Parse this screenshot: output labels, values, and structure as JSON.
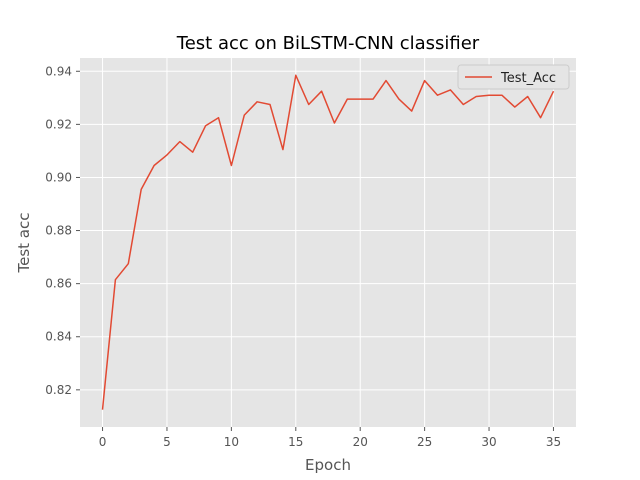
{
  "chart_data": {
    "type": "line",
    "title": "Test acc on BiLSTM-CNN classifier",
    "xlabel": "Epoch",
    "ylabel": "Test acc",
    "xlim": [
      -1.75,
      36.75
    ],
    "ylim": [
      0.806,
      0.945
    ],
    "xticks": [
      0,
      5,
      10,
      15,
      20,
      25,
      30,
      35
    ],
    "yticks": [
      0.82,
      0.84,
      0.86,
      0.88,
      0.9,
      0.92,
      0.94
    ],
    "xtick_labels": [
      "0",
      "5",
      "10",
      "15",
      "20",
      "25",
      "30",
      "35"
    ],
    "ytick_labels": [
      "0.82",
      "0.84",
      "0.86",
      "0.88",
      "0.90",
      "0.92",
      "0.94"
    ],
    "grid": true,
    "legend_position": "top-right",
    "series": [
      {
        "name": "Test_Acc",
        "color": "#e24a33",
        "x": [
          0,
          1,
          2,
          3,
          4,
          5,
          6,
          7,
          8,
          9,
          10,
          11,
          12,
          13,
          14,
          15,
          16,
          17,
          18,
          19,
          20,
          21,
          22,
          23,
          24,
          25,
          26,
          27,
          28,
          29,
          30,
          31,
          32,
          33,
          34,
          35
        ],
        "y": [
          0.8125,
          0.8615,
          0.8675,
          0.8955,
          0.9045,
          0.9085,
          0.9135,
          0.9095,
          0.9195,
          0.9225,
          0.9045,
          0.9235,
          0.9285,
          0.9275,
          0.9105,
          0.9385,
          0.9275,
          0.9325,
          0.9205,
          0.9295,
          0.9295,
          0.9295,
          0.9365,
          0.9295,
          0.925,
          0.9365,
          0.931,
          0.933,
          0.9275,
          0.9305,
          0.931,
          0.931,
          0.9265,
          0.9305,
          0.9225,
          0.9325
        ]
      }
    ]
  },
  "style": {
    "plot_background": "#e5e5e5",
    "grid_color": "#ffffff",
    "tick_color": "#555555",
    "label_color": "#555555",
    "title_color": "#000000"
  }
}
